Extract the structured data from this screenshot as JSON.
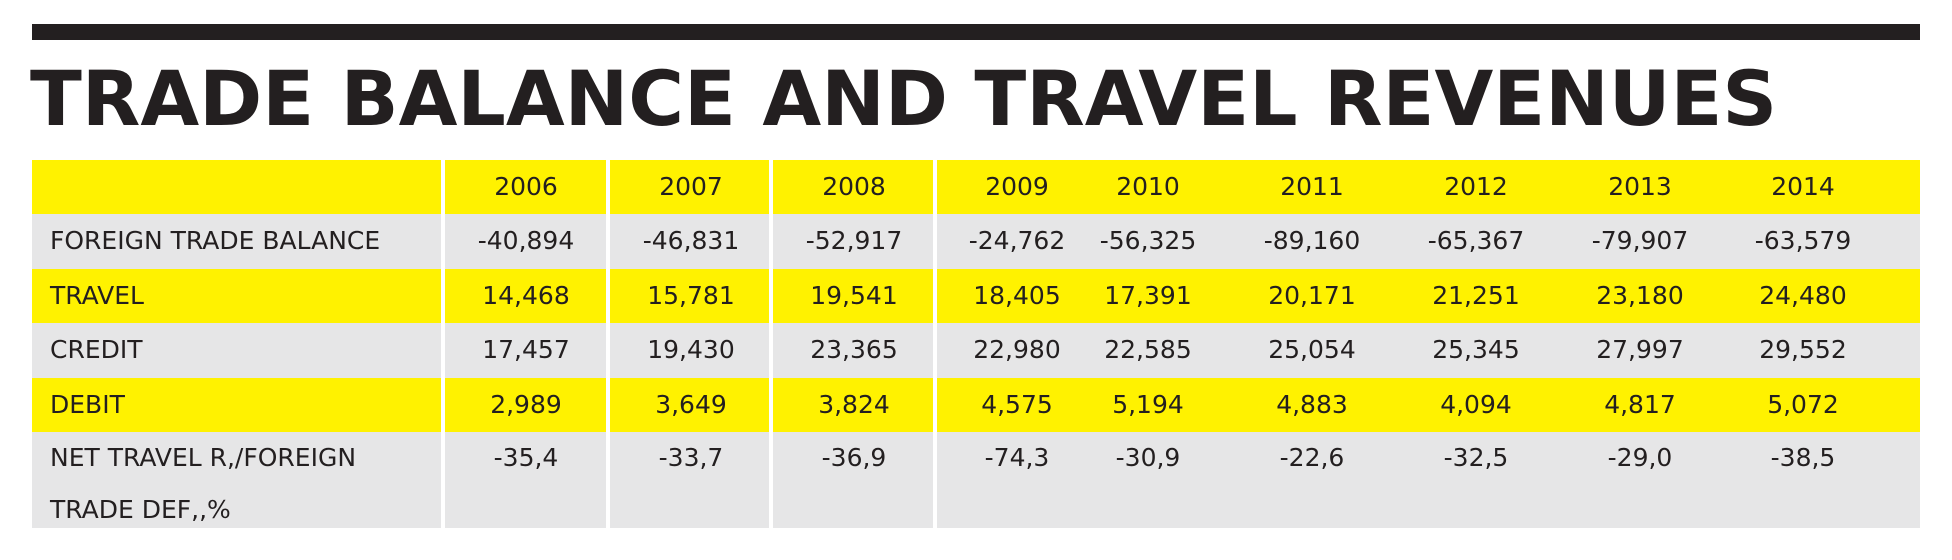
{
  "title": "TRADE BALANCE AND TRAVEL REVENUES",
  "table": {
    "years": [
      "2006",
      "2007",
      "2008",
      "2009",
      "2010",
      "2011",
      "2012",
      "2013",
      "2014"
    ],
    "rows": [
      {
        "label": "FOREIGN TRADE BALANCE",
        "values": [
          "-40,894",
          "-46,831",
          "-52,917",
          "-24,762",
          "-56,325",
          "-89,160",
          "-65,367",
          "-79,907",
          "-63,579"
        ]
      },
      {
        "label": "TRAVEL",
        "values": [
          "14,468",
          "15,781",
          "19,541",
          "18,405",
          "17,391",
          "20,171",
          "21,251",
          "23,180",
          "24,480"
        ]
      },
      {
        "label": "CREDIT",
        "values": [
          "17,457",
          "19,430",
          "23,365",
          "22,980",
          "22,585",
          "25,054",
          "25,345",
          "27,997",
          "29,552"
        ]
      },
      {
        "label": "DEBIT",
        "values": [
          "2,989",
          "3,649",
          "3,824",
          "4,575",
          "5,194",
          "4,883",
          "4,094",
          "4,817",
          "5,072"
        ]
      },
      {
        "label_line1": "NET TRAVEL R,/FOREIGN",
        "label_line2": "TRADE DEF,,%",
        "values": [
          "-35,4",
          "-33,7",
          "-36,9",
          "-74,3",
          "-30,9",
          "-22,6",
          "-32,5",
          "-29,0",
          "-38,5"
        ]
      }
    ]
  },
  "colors": {
    "yellow": "#fff200",
    "gray": "#e6e6e7",
    "text": "#231f20"
  }
}
